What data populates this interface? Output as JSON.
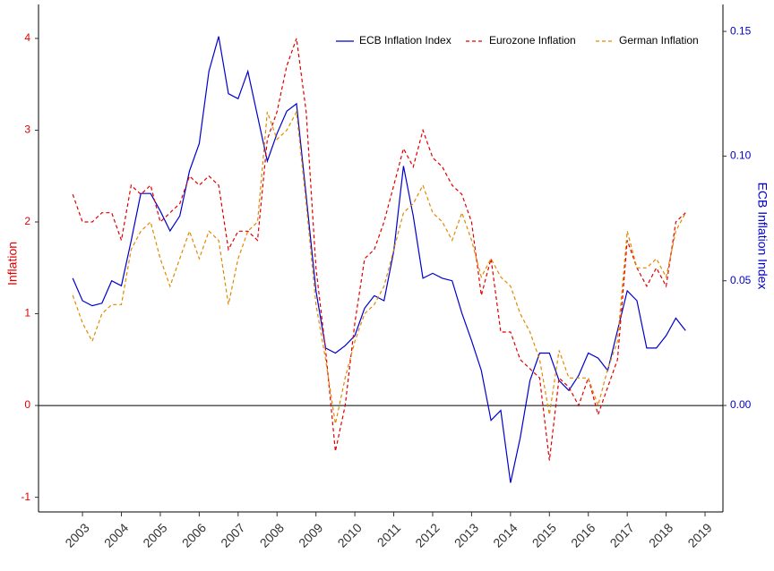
{
  "chart_data": {
    "type": "line",
    "x": [
      2002.75,
      2003,
      2003.25,
      2003.5,
      2003.75,
      2004,
      2004.25,
      2004.5,
      2004.75,
      2005,
      2005.25,
      2005.5,
      2005.75,
      2006,
      2006.25,
      2006.5,
      2006.75,
      2007,
      2007.25,
      2007.5,
      2007.75,
      2008,
      2008.25,
      2008.5,
      2008.75,
      2009,
      2009.25,
      2009.5,
      2009.75,
      2010,
      2010.25,
      2010.5,
      2010.75,
      2011,
      2011.25,
      2011.5,
      2011.75,
      2012,
      2012.25,
      2012.5,
      2012.75,
      2013,
      2013.25,
      2013.5,
      2013.75,
      2014,
      2014.25,
      2014.5,
      2014.75,
      2015,
      2015.25,
      2015.5,
      2015.75,
      2016,
      2016.25,
      2016.5,
      2016.75,
      2017,
      2017.25,
      2017.5,
      2017.75,
      2018,
      2018.25,
      2018.5
    ],
    "series": [
      {
        "name": "ECB Inflation Index",
        "color": "#0000cd",
        "linestyle": "solid",
        "axis": "y2",
        "values": [
          0.051,
          0.042,
          0.04,
          0.041,
          0.05,
          0.048,
          0.066,
          0.085,
          0.085,
          0.078,
          0.07,
          0.076,
          0.094,
          0.105,
          0.134,
          0.148,
          0.125,
          0.123,
          0.134,
          0.116,
          0.098,
          0.109,
          0.118,
          0.121,
          0.084,
          0.046,
          0.023,
          0.021,
          0.024,
          0.028,
          0.039,
          0.044,
          0.042,
          0.062,
          0.096,
          0.076,
          0.051,
          0.053,
          0.051,
          0.05,
          0.037,
          0.026,
          0.014,
          -0.006,
          -0.002,
          -0.031,
          -0.013,
          0.01,
          0.021,
          0.021,
          0.01,
          0.006,
          0.012,
          0.021,
          0.019,
          0.014,
          0.03,
          0.046,
          0.042,
          0.023,
          0.023,
          0.028,
          0.035,
          0.03
        ]
      },
      {
        "name": "Eurozone Inflation",
        "color": "#e00000",
        "linestyle": "dashed",
        "values": [
          2.3,
          2.0,
          2.0,
          2.1,
          2.1,
          1.8,
          2.4,
          2.3,
          2.4,
          2.0,
          2.1,
          2.2,
          2.5,
          2.4,
          2.5,
          2.4,
          1.7,
          1.9,
          1.9,
          1.8,
          2.9,
          3.2,
          3.7,
          4.0,
          3.2,
          1.5,
          0.6,
          -0.5,
          0.0,
          0.9,
          1.6,
          1.7,
          2.0,
          2.4,
          2.8,
          2.6,
          3.0,
          2.7,
          2.6,
          2.4,
          2.3,
          2.0,
          1.2,
          1.6,
          0.8,
          0.8,
          0.5,
          0.4,
          0.3,
          -0.6,
          0.3,
          0.2,
          0.0,
          0.3,
          -0.1,
          0.2,
          0.5,
          1.8,
          1.5,
          1.3,
          1.5,
          1.3,
          2.0,
          2.1
        ]
      },
      {
        "name": "German Inflation",
        "color": "#e08a00",
        "linestyle": "dashed",
        "values": [
          1.2,
          0.9,
          0.7,
          1.0,
          1.1,
          1.1,
          1.7,
          1.9,
          2.0,
          1.6,
          1.3,
          1.6,
          1.9,
          1.6,
          1.9,
          1.8,
          1.1,
          1.6,
          1.9,
          2.0,
          3.2,
          2.9,
          3.0,
          3.2,
          2.2,
          1.1,
          0.5,
          -0.2,
          0.3,
          0.7,
          1.0,
          1.1,
          1.3,
          1.7,
          2.1,
          2.2,
          2.4,
          2.1,
          2.0,
          1.8,
          2.1,
          1.8,
          1.4,
          1.6,
          1.4,
          1.3,
          1.0,
          0.8,
          0.5,
          -0.1,
          0.6,
          0.3,
          0.3,
          0.3,
          0.0,
          0.4,
          0.7,
          1.9,
          1.5,
          1.5,
          1.6,
          1.4,
          1.9,
          2.1
        ]
      }
    ],
    "ylabel": "Inflation",
    "y2label": "ECB Inflation Index",
    "xlim": [
      2001.87,
      2019.46
    ],
    "xticks": [
      2003,
      2004,
      2005,
      2006,
      2007,
      2008,
      2009,
      2010,
      2011,
      2012,
      2013,
      2014,
      2015,
      2016,
      2017,
      2018,
      2019
    ],
    "ylim": [
      -1.16,
      4.37
    ],
    "yticks": [
      -1,
      0,
      1,
      2,
      3,
      4
    ],
    "y2lim": [
      -0.0427,
      0.1608
    ],
    "y2ticks": [
      {
        "value": 0,
        "label": "0.00"
      },
      {
        "value": 0.05,
        "label": "0.05"
      },
      {
        "value": 0.1,
        "label": "0.10"
      },
      {
        "value": 0.15,
        "label": "0.15"
      }
    ],
    "hline": 0,
    "ylabel_color": "#e00000",
    "y2label_color": "#0000cd",
    "grid": false,
    "legend": "top-right"
  }
}
